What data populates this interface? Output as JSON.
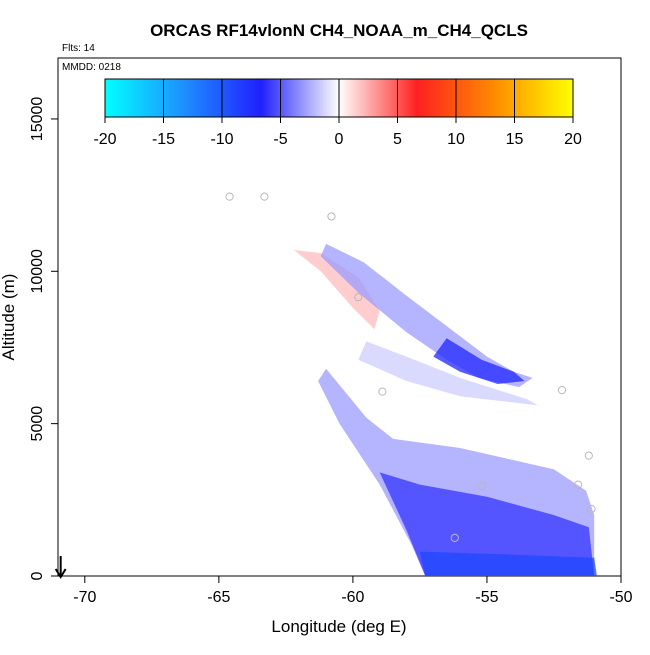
{
  "chart_data": {
    "type": "heatmap",
    "title": "ORCAS RF14vlonN CH4_NOAA_m_CH4_QCLS",
    "annotations": {
      "flights": "Flts: 14",
      "mmdd": "MMDD: 0218"
    },
    "xlabel": "Longitude (deg E)",
    "ylabel": "Altitude (m)",
    "xlim": [
      -71,
      -50
    ],
    "ylim": [
      0,
      17000
    ],
    "x_ticks": [
      -70,
      -65,
      -60,
      -55,
      -50
    ],
    "y_ticks": [
      0,
      5000,
      10000,
      15000
    ],
    "colorbar": {
      "range": [
        -20,
        20
      ],
      "ticks": [
        -20,
        -15,
        -10,
        -5,
        0,
        5,
        10,
        15,
        20
      ],
      "colors": [
        "#00ffff",
        "#1e90ff",
        "#2020ff",
        "#ffffff",
        "#ff2020",
        "#ff8c00",
        "#ffff00"
      ],
      "orientation": "horizontal",
      "placement": "top"
    },
    "arrow_marker": {
      "x": -70.9,
      "direction": "down"
    },
    "regions": [
      {
        "name": "upper positive band",
        "polygon": [
          [
            -62.2,
            10700
          ],
          [
            -61.2,
            10000
          ],
          [
            -60,
            8800
          ],
          [
            -59.2,
            8100
          ],
          [
            -59,
            8700
          ],
          [
            -59.8,
            9800
          ],
          [
            -61.2,
            10600
          ]
        ],
        "value": 2
      },
      {
        "name": "upper negative band",
        "polygon": [
          [
            -61,
            10900
          ],
          [
            -59.6,
            10300
          ],
          [
            -58,
            9200
          ],
          [
            -56.5,
            8200
          ],
          [
            -55,
            7200
          ],
          [
            -54,
            6700
          ],
          [
            -53.3,
            6500
          ],
          [
            -53.8,
            6200
          ],
          [
            -55.3,
            6500
          ],
          [
            -56.5,
            7100
          ],
          [
            -58,
            8000
          ],
          [
            -59.8,
            9300
          ],
          [
            -61.2,
            10500
          ]
        ],
        "value": -3
      },
      {
        "name": "upper negative core",
        "polygon": [
          [
            -56.5,
            7800
          ],
          [
            -55.2,
            7100
          ],
          [
            -54,
            6700
          ],
          [
            -53.6,
            6400
          ],
          [
            -54.6,
            6300
          ],
          [
            -56,
            6700
          ],
          [
            -57,
            7200
          ]
        ],
        "value": -7
      },
      {
        "name": "pre-return light band",
        "polygon": [
          [
            -59.5,
            7700
          ],
          [
            -58,
            7200
          ],
          [
            -56,
            6500
          ],
          [
            -53.5,
            5800
          ],
          [
            -53.1,
            5600
          ],
          [
            -56,
            5900
          ],
          [
            -58,
            6400
          ],
          [
            -59.8,
            7100
          ]
        ],
        "value": -1.5
      },
      {
        "name": "lower descent wedge",
        "polygon": [
          [
            -61,
            6800
          ],
          [
            -59.5,
            5200
          ],
          [
            -58.5,
            4500
          ],
          [
            -56,
            4200
          ],
          [
            -52.5,
            3500
          ],
          [
            -51.3,
            2800
          ],
          [
            -51,
            2000
          ],
          [
            -51,
            0
          ],
          [
            -57.3,
            0
          ],
          [
            -57.8,
            1000
          ],
          [
            -59,
            3000
          ],
          [
            -60.5,
            5000
          ],
          [
            -61.3,
            6400
          ]
        ],
        "value": -3
      },
      {
        "name": "lower wedge interior",
        "polygon": [
          [
            -59,
            3400
          ],
          [
            -57.5,
            3000
          ],
          [
            -55,
            2600
          ],
          [
            -52.5,
            2000
          ],
          [
            -51.2,
            1600
          ],
          [
            -51,
            0
          ],
          [
            -57.3,
            0
          ],
          [
            -58,
            1500
          ]
        ],
        "value": -6
      },
      {
        "name": "surface layer",
        "polygon": [
          [
            -57.5,
            800
          ],
          [
            -54,
            700
          ],
          [
            -51,
            600
          ],
          [
            -50.9,
            0
          ],
          [
            -57.3,
            0
          ]
        ],
        "value": -9
      }
    ],
    "points": [
      {
        "x": -64.6,
        "y": 12450
      },
      {
        "x": -63.3,
        "y": 12450
      },
      {
        "x": -60.8,
        "y": 11800
      },
      {
        "x": -59.8,
        "y": 9150
      },
      {
        "x": -58.9,
        "y": 6050
      },
      {
        "x": -52.2,
        "y": 6100
      },
      {
        "x": -51.2,
        "y": 3950
      },
      {
        "x": -51.6,
        "y": 3000
      },
      {
        "x": -55.2,
        "y": 2950
      },
      {
        "x": -51.1,
        "y": 2200
      },
      {
        "x": -56.2,
        "y": 1250
      }
    ]
  }
}
